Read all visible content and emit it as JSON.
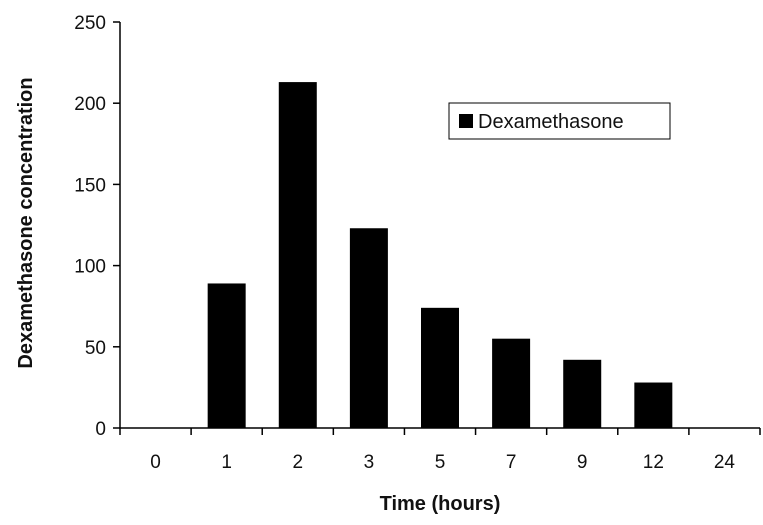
{
  "chart_data": {
    "type": "bar",
    "categories": [
      "0",
      "1",
      "2",
      "3",
      "5",
      "7",
      "9",
      "12",
      "24"
    ],
    "series": [
      {
        "name": "Dexamethasone",
        "values": [
          0,
          89,
          213,
          123,
          74,
          55,
          42,
          28,
          0
        ],
        "color": "#000000"
      }
    ],
    "xlabel": "Time (hours)",
    "ylabel": "Dexamethasone concentration",
    "ylim": [
      0,
      250
    ],
    "yticks": [
      0,
      50,
      100,
      150,
      200,
      250
    ],
    "grid": false,
    "legend": {
      "position": "top-right"
    }
  }
}
